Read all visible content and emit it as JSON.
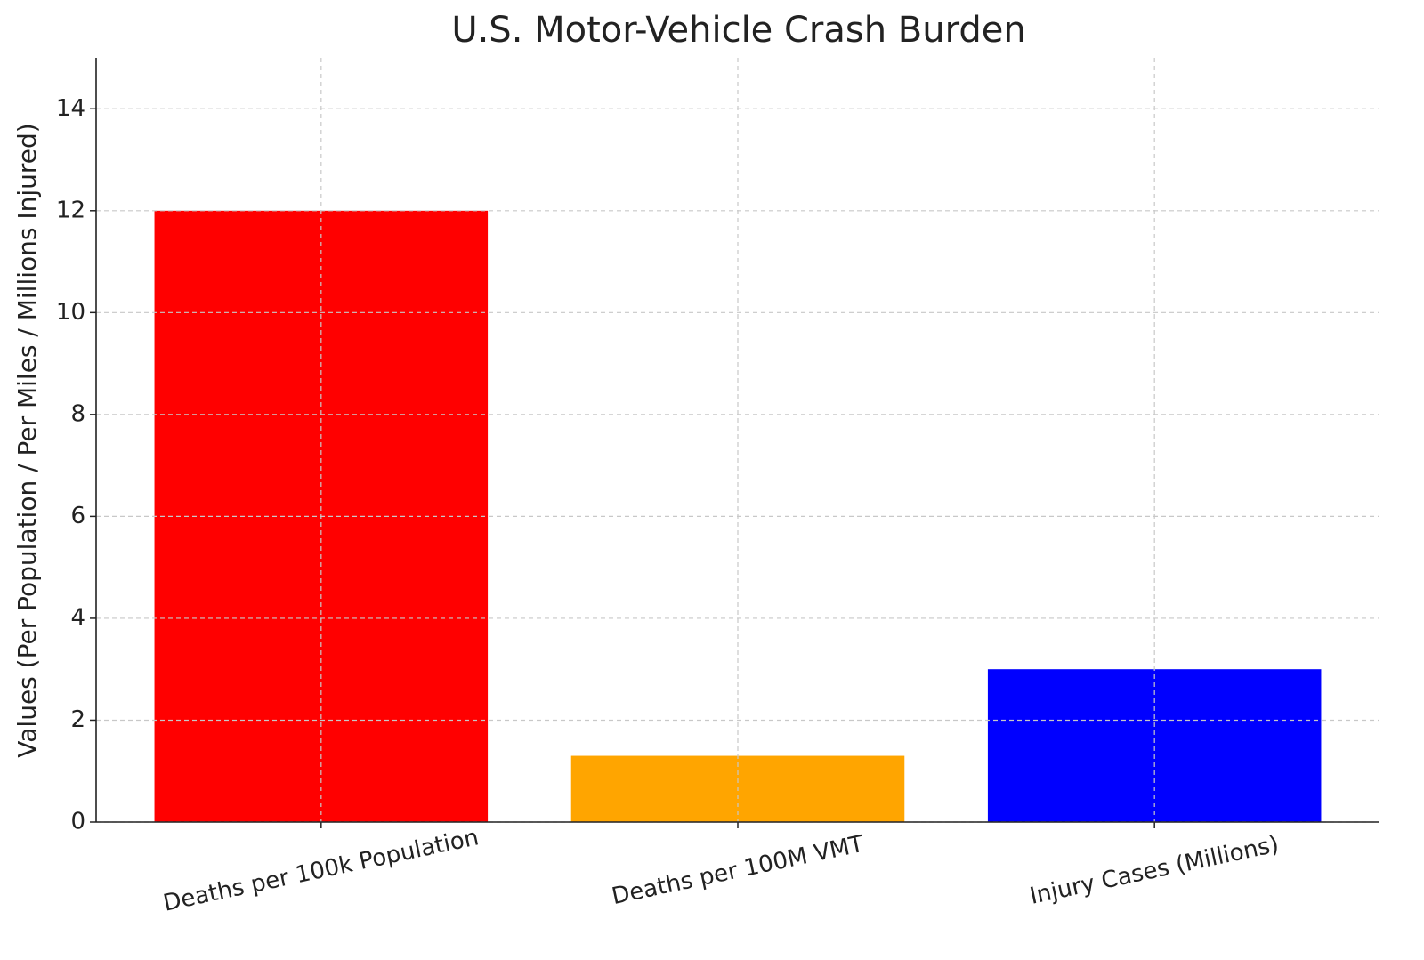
{
  "chart_data": {
    "type": "bar",
    "title": "U.S. Motor-Vehicle Crash Burden",
    "y_label": "Values (Per Population / Per Miles / Millions Injured)",
    "categories": [
      "Deaths per 100k Population",
      "Deaths per 100M VMT",
      "Injury Cases (Millions)"
    ],
    "values": [
      12,
      1.3,
      3
    ],
    "colors": [
      "#ff0000",
      "#ffa500",
      "#0000ff"
    ],
    "ylim": [
      0,
      15
    ],
    "yticks": [
      0,
      2,
      4,
      6,
      8,
      10,
      12,
      14
    ],
    "grid": true
  }
}
